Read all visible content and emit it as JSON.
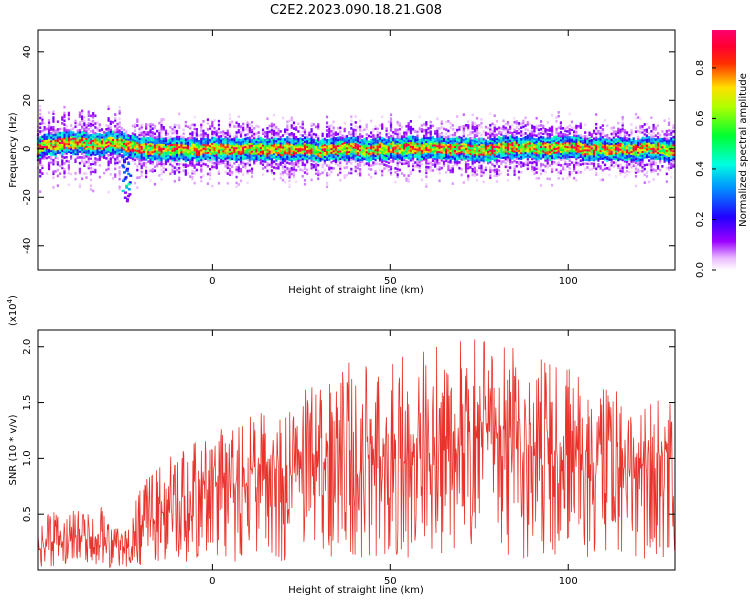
{
  "title": "C2E2.2023.090.18.21.G08",
  "chart_data": [
    {
      "type": "heatmap",
      "xlabel": "Height of straight line (km)",
      "ylabel": "Frequency (Hz)",
      "xlim": [
        -49,
        130
      ],
      "ylim": [
        -50,
        49
      ],
      "xticks": [
        0,
        50,
        100
      ],
      "yticks": [
        40,
        20,
        0,
        -20,
        -40
      ],
      "colorbar": {
        "label": "Normalized spectral amplitude",
        "range": [
          0.0,
          0.95
        ],
        "ticks": [
          0.0,
          0.2,
          0.4,
          0.6,
          0.8
        ],
        "colormap": "hsv-reversed (white, purple, blue, cyan, green, yellow, red, magenta)"
      },
      "band": {
        "description": "Narrow high-amplitude band centered near 0 Hz across all heights; amplitude ~0.3-0.9 along the band",
        "center_freq_hz": 0,
        "half_width_hz": 5,
        "feature": {
          "x": -24,
          "freq_hz": -16,
          "note": "downward excursion to about -16 Hz"
        }
      }
    },
    {
      "type": "line",
      "xlabel": "Height of straight line (km)",
      "ylabel": "SNR (10 * v/v)",
      "y_multiplier": "(x10^4)",
      "xlim": [
        -49,
        130
      ],
      "ylim": [
        0,
        2.15
      ],
      "xticks": [
        0,
        50,
        100
      ],
      "yticks": [
        0.5,
        1.0,
        1.5,
        2.0
      ],
      "color": "#e8322b",
      "envelope_x": [
        -49,
        -30,
        -25,
        -18,
        -10,
        0,
        15,
        25,
        38,
        50,
        60,
        75,
        85,
        100,
        115,
        130
      ],
      "envelope_max": [
        0.55,
        0.58,
        0.35,
        0.9,
        1.05,
        1.25,
        1.5,
        1.6,
        1.95,
        1.95,
        2.0,
        2.12,
        2.0,
        1.85,
        1.6,
        1.5
      ],
      "envelope_mean": [
        0.22,
        0.25,
        0.15,
        0.42,
        0.55,
        0.65,
        0.8,
        0.85,
        0.95,
        0.95,
        1.0,
        1.05,
        1.0,
        0.95,
        0.9,
        0.85
      ]
    }
  ]
}
